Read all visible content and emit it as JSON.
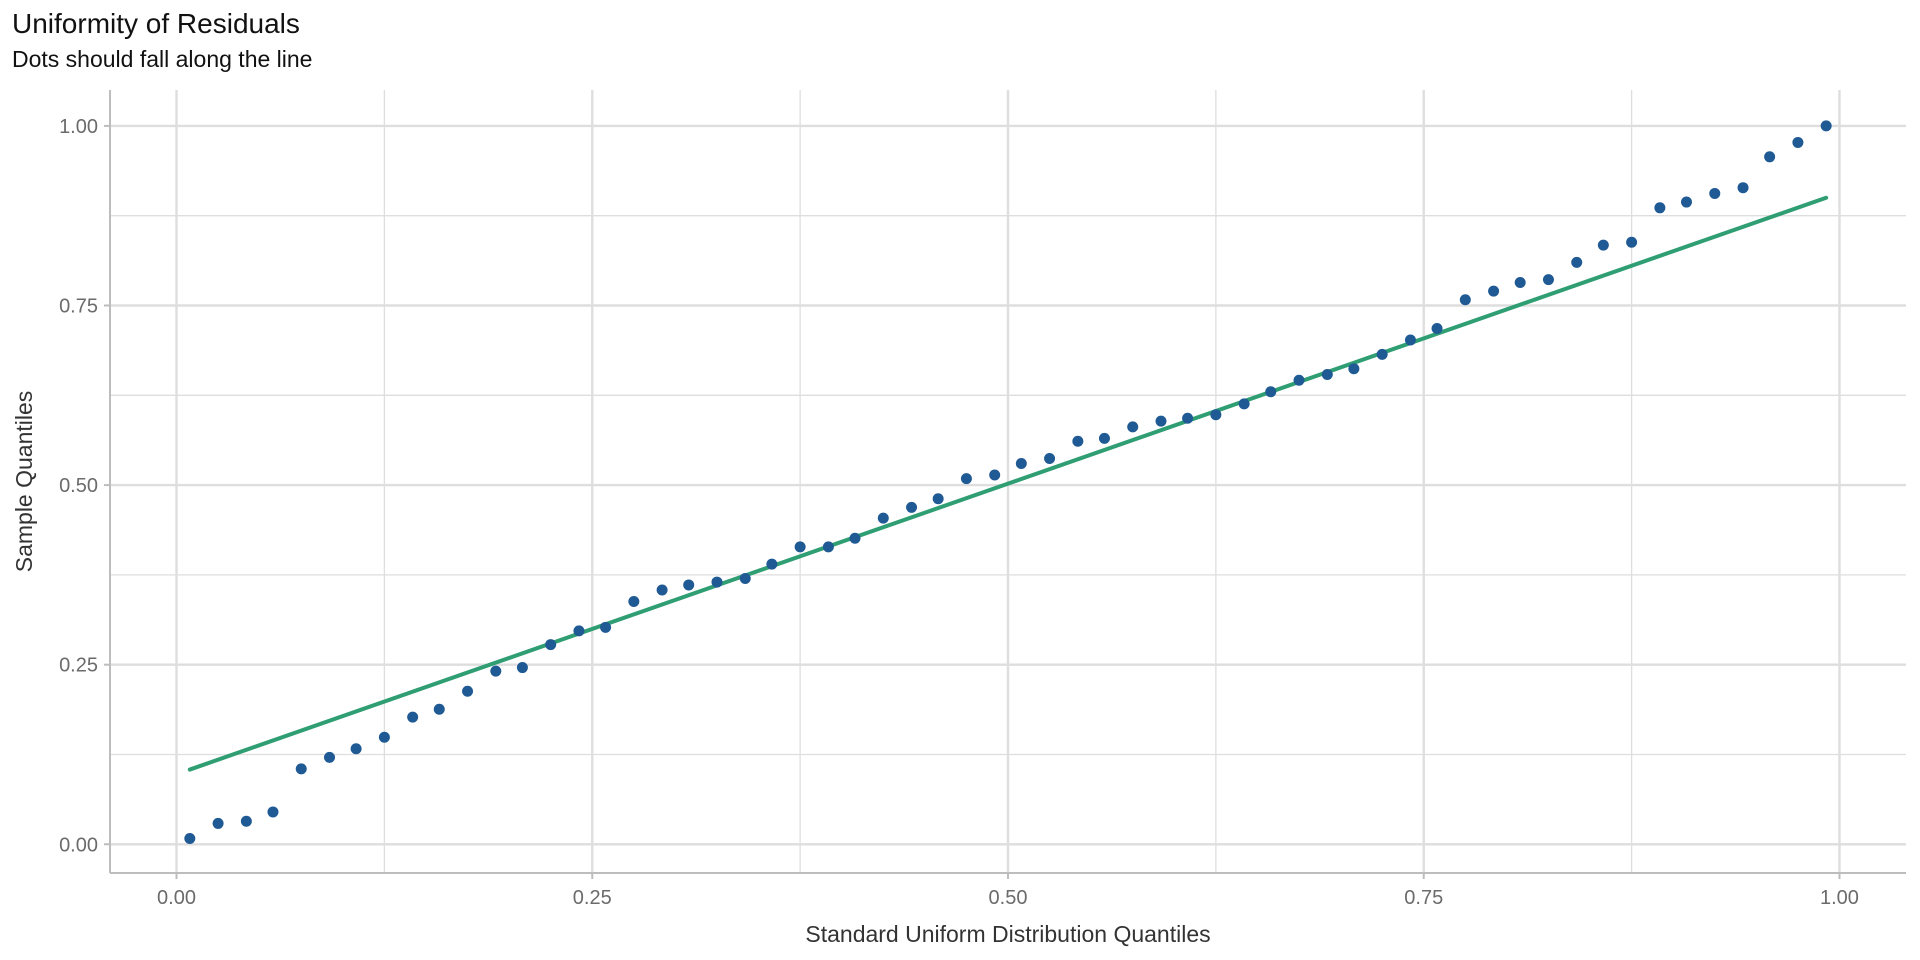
{
  "chart_data": {
    "type": "scatter",
    "title": "Uniformity of Residuals",
    "subtitle": "Dots should fall along the line",
    "xlabel": "Standard Uniform Distribution Quantiles",
    "ylabel": "Sample Quantiles",
    "xlim": [
      -0.04,
      1.04
    ],
    "ylim": [
      -0.04,
      1.05
    ],
    "xticks": [
      "0.00",
      "0.25",
      "0.50",
      "0.75",
      "1.00"
    ],
    "yticks": [
      "0.00",
      "0.25",
      "0.50",
      "0.75",
      "1.00"
    ],
    "grid": true,
    "colors": {
      "points": "#1f5a94",
      "line": "#2f9e73",
      "grid": "#dedede",
      "axis": "#bdbdbd"
    },
    "reference_line": {
      "x": [
        0.008,
        0.992
      ],
      "y": [
        0.104,
        0.9
      ]
    },
    "points": {
      "x": [
        0.008,
        0.025,
        0.042,
        0.058,
        0.075,
        0.092,
        0.108,
        0.125,
        0.142,
        0.158,
        0.175,
        0.192,
        0.208,
        0.225,
        0.242,
        0.258,
        0.275,
        0.292,
        0.308,
        0.325,
        0.342,
        0.358,
        0.375,
        0.392,
        0.408,
        0.425,
        0.442,
        0.458,
        0.475,
        0.492,
        0.508,
        0.525,
        0.542,
        0.558,
        0.575,
        0.592,
        0.608,
        0.625,
        0.642,
        0.658,
        0.675,
        0.692,
        0.708,
        0.725,
        0.742,
        0.758,
        0.775,
        0.792,
        0.808,
        0.825,
        0.842,
        0.858,
        0.875,
        0.892,
        0.908,
        0.925,
        0.942,
        0.958,
        0.975,
        0.992
      ],
      "y": [
        0.008,
        0.029,
        0.032,
        0.045,
        0.105,
        0.121,
        0.133,
        0.149,
        0.177,
        0.188,
        0.213,
        0.241,
        0.246,
        0.278,
        0.297,
        0.302,
        0.338,
        0.354,
        0.361,
        0.365,
        0.37,
        0.39,
        0.414,
        0.414,
        0.426,
        0.454,
        0.469,
        0.481,
        0.509,
        0.514,
        0.53,
        0.537,
        0.561,
        0.565,
        0.581,
        0.589,
        0.593,
        0.598,
        0.613,
        0.63,
        0.646,
        0.654,
        0.662,
        0.682,
        0.702,
        0.718,
        0.758,
        0.77,
        0.782,
        0.786,
        0.81,
        0.834,
        0.838,
        0.886,
        0.894,
        0.906,
        0.914,
        0.957,
        0.977,
        1.0
      ]
    }
  }
}
